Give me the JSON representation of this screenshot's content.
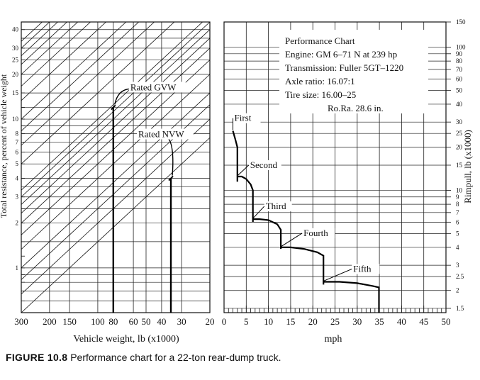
{
  "figure_label": "FIGURE 10.8",
  "caption": "Performance chart for a 22-ton rear-dump truck.",
  "chart_data": [
    {
      "type": "line",
      "panel": "left",
      "xlabel": "Vehicle weight, lb (x1000)",
      "ylabel": "Total resistance, percent of vehicle weight",
      "x_scale": "log",
      "x_reversed": true,
      "xlim": [
        300,
        20
      ],
      "y_scale": "log",
      "ylim": [
        0.5,
        45
      ],
      "x_tick_labels": [
        "300",
        "200",
        "150",
        "100",
        "80",
        "60",
        "50",
        "40",
        "30",
        "20"
      ],
      "x_tick_values": [
        300,
        200,
        150,
        100,
        80,
        60,
        50,
        40,
        30,
        20
      ],
      "y_tick_labels": [
        "1",
        "2",
        "3",
        "4",
        "5",
        "6",
        "7",
        "8",
        "10",
        "15",
        "20",
        "25",
        "30",
        "40"
      ],
      "y_tick_values": [
        1,
        2,
        3,
        4,
        5,
        6,
        7,
        8,
        10,
        15,
        20,
        25,
        30,
        40
      ],
      "diagonal_rimpull_values": [
        150,
        100,
        90,
        80,
        70,
        60,
        50,
        40,
        30,
        25,
        20,
        15,
        10,
        9,
        8,
        7,
        6,
        5,
        4,
        3,
        2.5,
        2,
        1.5
      ],
      "markers": [
        {
          "label": "Rated GVW",
          "weight": 80,
          "resistance": 12
        },
        {
          "label": "Rated NVW",
          "weight": 35,
          "resistance": 4
        }
      ],
      "grid": true
    },
    {
      "type": "line",
      "panel": "right",
      "xlabel": "mph",
      "ylabel": "Rimpull, lb (x1000)",
      "xlim": [
        0,
        50
      ],
      "y_scale": "log",
      "ylim": [
        1.4,
        150
      ],
      "x_tick_labels": [
        "0",
        "5",
        "10",
        "15",
        "20",
        "25",
        "30",
        "35",
        "40",
        "45",
        "50"
      ],
      "x_tick_values": [
        0,
        5,
        10,
        15,
        20,
        25,
        30,
        35,
        40,
        45,
        50
      ],
      "y_tick_labels": [
        "1.5",
        "2",
        "2.5",
        "3",
        "4",
        "5",
        "6",
        "7",
        "8",
        "9",
        "10",
        "15",
        "20",
        "25",
        "30",
        "40",
        "50",
        "60",
        "70",
        "80",
        "90",
        "100",
        "150"
      ],
      "y_tick_values": [
        1.5,
        2,
        2.5,
        3,
        4,
        5,
        6,
        7,
        8,
        9,
        10,
        15,
        20,
        25,
        30,
        40,
        50,
        60,
        70,
        80,
        90,
        100,
        150
      ],
      "series": [
        {
          "name": "First",
          "x": [
            2.0,
            2.5,
            3.0,
            3.0
          ],
          "y": [
            26,
            23,
            20,
            11.5
          ]
        },
        {
          "name": "Second",
          "x": [
            3.0,
            4.0,
            5.0,
            6.0,
            6.5,
            6.5
          ],
          "y": [
            12.5,
            12.5,
            12.0,
            11.0,
            10.0,
            6.0
          ]
        },
        {
          "name": "Third",
          "x": [
            6.5,
            8.0,
            10.0,
            12.0,
            12.8,
            12.8
          ],
          "y": [
            6.3,
            6.3,
            6.2,
            5.8,
            5.3,
            3.9
          ]
        },
        {
          "name": "Fourth",
          "x": [
            12.8,
            15.0,
            18.0,
            21.0,
            22.4,
            22.4
          ],
          "y": [
            4.0,
            4.0,
            3.9,
            3.7,
            3.5,
            2.2
          ]
        },
        {
          "name": "Fifth",
          "x": [
            22.4,
            26.0,
            30.0,
            33.5,
            34.9,
            34.9
          ],
          "y": [
            2.3,
            2.3,
            2.25,
            2.15,
            2.1,
            1.4
          ]
        }
      ],
      "info_box": [
        "Performance Chart",
        "Engine: GM 6–71 N at 239 hp",
        "Transmission: Fuller 5GT–1220",
        "Axle ratio: 16.07:1",
        "Tire size: 16.00–25",
        "Ro.Ra. 28.6 in."
      ],
      "grid": true
    }
  ]
}
